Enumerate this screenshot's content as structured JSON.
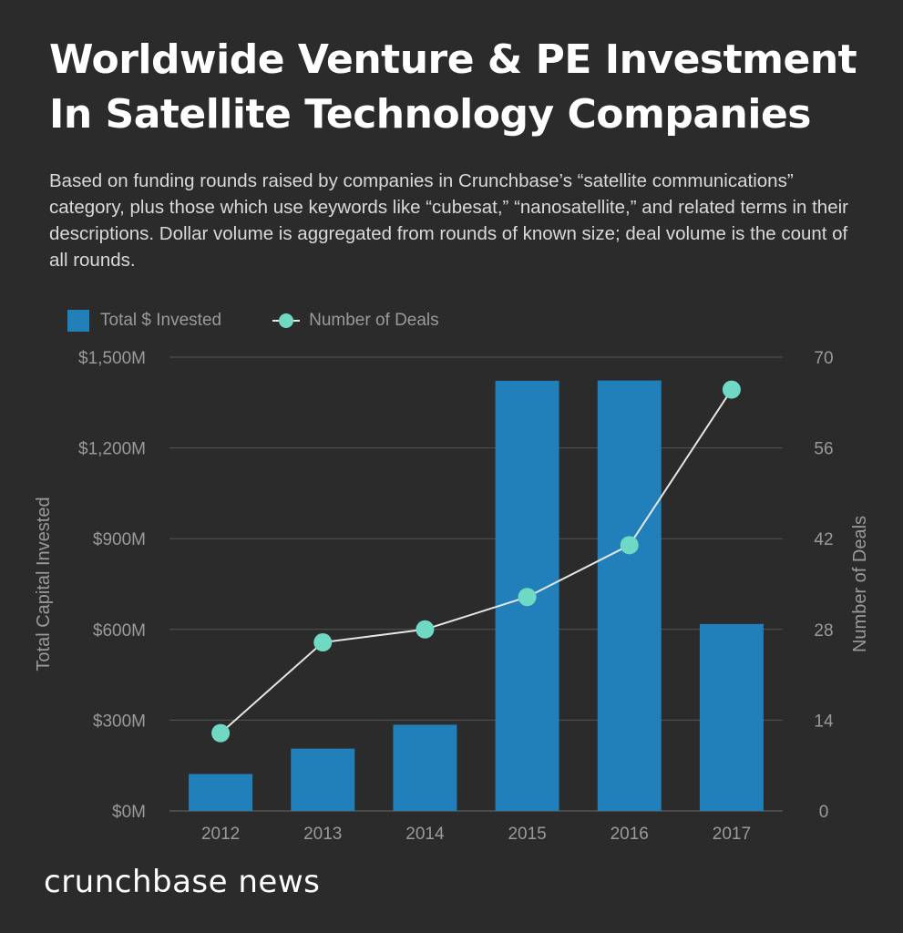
{
  "title_line1": "Worldwide Venture & PE Investment",
  "title_line2": "In Satellite Technology Companies",
  "subtitle": "Based on funding rounds raised by companies in Crunchbase’s “satellite communications” category, plus those which use keywords like “cubesat,” “nanosatellite,” and related terms in their descriptions. Dollar volume is aggregated from rounds of known size; deal volume is the count of all rounds.",
  "brand": "crunchbase news",
  "colors": {
    "background": "#2b2b2b",
    "bar": "#2180b9",
    "line": "#e6e6e6",
    "marker": "#6fd9c4",
    "grid": "#555555",
    "axis_text": "#9a9a9a"
  },
  "chart_data": {
    "type": "bar+line",
    "categories": [
      "2012",
      "2013",
      "2014",
      "2015",
      "2016",
      "2017"
    ],
    "series": [
      {
        "name": "Total $ Invested",
        "type": "bar",
        "axis": "left",
        "values": [
          122,
          206,
          285,
          1422,
          1423,
          618
        ]
      },
      {
        "name": "Number of Deals",
        "type": "line",
        "axis": "right",
        "values": [
          12,
          26,
          28,
          33,
          41,
          65
        ]
      }
    ],
    "ylabel_left": "Total Capital Invested",
    "ylabel_right": "Number of Deals",
    "ylim_left": [
      0,
      1500
    ],
    "ylim_right": [
      0,
      70
    ],
    "yticks_left": [
      "$0M",
      "$300M",
      "$600M",
      "$900M",
      "$1,200M",
      "$1,500M"
    ],
    "yticks_right": [
      "0",
      "14",
      "28",
      "42",
      "56",
      "70"
    ],
    "grid": true,
    "legend_position": "top-left"
  }
}
